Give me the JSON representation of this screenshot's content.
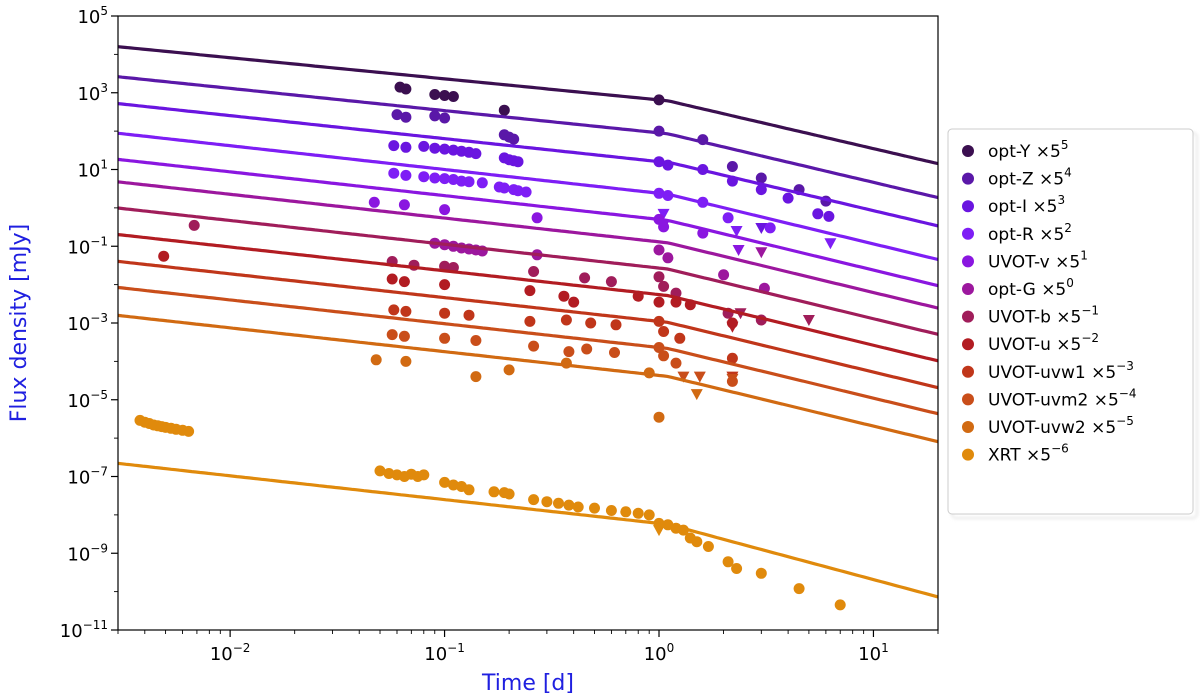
{
  "chart_data": {
    "type": "scatter",
    "title": "",
    "xlabel": "Time [d]",
    "ylabel": "Flux density [mJy]",
    "xscale": "log",
    "yscale": "log",
    "xlim": [
      0.003,
      20
    ],
    "ylim": [
      1e-11,
      100000.0
    ],
    "x_ticks": [
      {
        "value": 0.01,
        "base": "10",
        "exp": "−2"
      },
      {
        "value": 0.1,
        "base": "10",
        "exp": "−1"
      },
      {
        "value": 1,
        "base": "10",
        "exp": "0"
      },
      {
        "value": 10,
        "base": "10",
        "exp": "1"
      }
    ],
    "y_ticks": [
      {
        "value": 1e-11,
        "base": "10",
        "exp": "−11"
      },
      {
        "value": 1e-09,
        "base": "10",
        "exp": "−9"
      },
      {
        "value": 1e-07,
        "base": "10",
        "exp": "−7"
      },
      {
        "value": 1e-05,
        "base": "10",
        "exp": "−5"
      },
      {
        "value": 0.001,
        "base": "10",
        "exp": "−3"
      },
      {
        "value": 0.1,
        "base": "10",
        "exp": "−1"
      },
      {
        "value": 10,
        "base": "10",
        "exp": "1"
      },
      {
        "value": 1000.0,
        "base": "10",
        "exp": "3"
      },
      {
        "value": 100000.0,
        "base": "10",
        "exp": "5"
      }
    ],
    "legend_position": "outside-right",
    "series": [
      {
        "name": "opt-Y",
        "scale_base": "5",
        "scale_exp": "5",
        "color": "#3b0f50",
        "model": {
          "y_at_1": 650,
          "alpha1": 0.55,
          "t_break": 1.1,
          "alpha2": 1.3
        },
        "points": [
          [
            0.062,
            1400
          ],
          [
            0.066,
            1250
          ],
          [
            0.09,
            900
          ],
          [
            0.1,
            850
          ],
          [
            0.11,
            800
          ],
          [
            0.19,
            350
          ],
          [
            1.0,
            650
          ]
        ],
        "upper_limits": []
      },
      {
        "name": "opt-Z",
        "scale_base": "5",
        "scale_exp": "4",
        "color": "#5a18a8",
        "model": {
          "y_at_1": 90,
          "alpha1": 0.58,
          "t_break": 1.1,
          "alpha2": 1.32
        },
        "points": [
          [
            0.06,
            270
          ],
          [
            0.066,
            230
          ],
          [
            0.09,
            250
          ],
          [
            0.1,
            220
          ],
          [
            0.19,
            80
          ],
          [
            0.2,
            70
          ],
          [
            0.21,
            62
          ],
          [
            1.0,
            100
          ],
          [
            1.6,
            60
          ],
          [
            2.2,
            12
          ],
          [
            3.0,
            6
          ],
          [
            4.5,
            3
          ],
          [
            6.0,
            1.5
          ]
        ],
        "upper_limits": []
      },
      {
        "name": "opt-I",
        "scale_base": "5",
        "scale_exp": "3",
        "color": "#6a15e0",
        "model": {
          "y_at_1": 16,
          "alpha1": 0.6,
          "t_break": 1.15,
          "alpha2": 1.32
        },
        "points": [
          [
            0.058,
            42
          ],
          [
            0.066,
            38
          ],
          [
            0.08,
            40
          ],
          [
            0.09,
            36
          ],
          [
            0.1,
            34
          ],
          [
            0.11,
            32
          ],
          [
            0.12,
            30
          ],
          [
            0.13,
            28
          ],
          [
            0.14,
            26
          ],
          [
            0.19,
            20
          ],
          [
            0.2,
            18
          ],
          [
            0.21,
            17
          ],
          [
            0.22,
            16
          ],
          [
            1.0,
            16
          ],
          [
            1.1,
            13
          ],
          [
            1.6,
            10
          ],
          [
            2.2,
            5
          ],
          [
            3.0,
            3
          ],
          [
            4.0,
            1.8
          ],
          [
            5.5,
            0.7
          ],
          [
            6.2,
            0.6
          ]
        ],
        "upper_limits": [
          [
            3.0,
            0.3
          ]
        ]
      },
      {
        "name": "opt-R",
        "scale_base": "5",
        "scale_exp": "2",
        "color": "#7e1ef5",
        "model": {
          "y_at_1": 2.4,
          "alpha1": 0.62,
          "t_break": 1.1,
          "alpha2": 1.35
        },
        "points": [
          [
            0.058,
            8
          ],
          [
            0.066,
            7
          ],
          [
            0.08,
            6.5
          ],
          [
            0.09,
            6
          ],
          [
            0.1,
            5.8
          ],
          [
            0.11,
            5.5
          ],
          [
            0.12,
            5
          ],
          [
            0.13,
            4.8
          ],
          [
            0.15,
            4.5
          ],
          [
            0.18,
            3.5
          ],
          [
            0.19,
            3.3
          ],
          [
            0.21,
            3
          ],
          [
            0.22,
            2.8
          ],
          [
            0.24,
            2.6
          ],
          [
            1.0,
            2.4
          ],
          [
            1.1,
            2.1
          ],
          [
            1.6,
            1.4
          ],
          [
            2.1,
            0.55
          ],
          [
            3.3,
            0.3
          ]
        ],
        "upper_limits": [
          [
            1.05,
            0.7
          ],
          [
            2.3,
            0.25
          ],
          [
            6.3,
            0.12
          ]
        ]
      },
      {
        "name": "UVOT-v",
        "scale_base": "5",
        "scale_exp": "1",
        "color": "#8a16e0",
        "model": {
          "y_at_1": 0.5,
          "alpha1": 0.62,
          "t_break": 1.1,
          "alpha2": 1.35
        },
        "points": [
          [
            0.047,
            1.4
          ],
          [
            0.065,
            1.2
          ],
          [
            0.1,
            0.9
          ],
          [
            0.27,
            0.55
          ],
          [
            1.0,
            0.5
          ],
          [
            1.05,
            0.32
          ],
          [
            1.6,
            0.22
          ]
        ],
        "upper_limits": [
          [
            1.05,
            0.35
          ],
          [
            2.35,
            0.08
          ]
        ]
      },
      {
        "name": "opt-G",
        "scale_base": "5",
        "scale_exp": "0",
        "color": "#9c179e",
        "model": {
          "y_at_1": 0.13,
          "alpha1": 0.62,
          "t_break": 1.1,
          "alpha2": 1.35
        },
        "points": [
          [
            0.09,
            0.12
          ],
          [
            0.1,
            0.11
          ],
          [
            0.11,
            0.1
          ],
          [
            0.12,
            0.09
          ],
          [
            0.13,
            0.085
          ],
          [
            0.14,
            0.08
          ],
          [
            0.15,
            0.075
          ],
          [
            0.27,
            0.06
          ],
          [
            1.0,
            0.08
          ],
          [
            1.1,
            0.05
          ],
          [
            2.0,
            0.018
          ],
          [
            3.1,
            0.008
          ]
        ],
        "upper_limits": [
          [
            3.0,
            0.07
          ]
        ]
      },
      {
        "name": "UVOT-b",
        "scale_base": "5",
        "scale_exp": "−1",
        "color": "#a01d5a",
        "model": {
          "y_at_1": 0.027,
          "alpha1": 0.62,
          "t_break": 1.1,
          "alpha2": 1.35
        },
        "points": [
          [
            0.0068,
            0.35
          ],
          [
            0.057,
            0.04
          ],
          [
            0.072,
            0.032
          ],
          [
            0.1,
            0.03
          ],
          [
            0.11,
            0.028
          ],
          [
            0.26,
            0.022
          ],
          [
            0.45,
            0.015
          ],
          [
            0.6,
            0.012
          ],
          [
            1.0,
            0.016
          ],
          [
            1.05,
            0.009
          ],
          [
            1.2,
            0.006
          ],
          [
            2.1,
            0.0018
          ],
          [
            3.0,
            0.0012
          ]
        ],
        "upper_limits": [
          [
            2.4,
            0.0018
          ],
          [
            5.0,
            0.0012
          ]
        ]
      },
      {
        "name": "UVOT-u",
        "scale_base": "5",
        "scale_exp": "−2",
        "color": "#b21c22",
        "model": {
          "y_at_1": 0.0055,
          "alpha1": 0.62,
          "t_break": 1.1,
          "alpha2": 1.35
        },
        "points": [
          [
            0.0049,
            0.055
          ],
          [
            0.057,
            0.014
          ],
          [
            0.065,
            0.012
          ],
          [
            0.1,
            0.01
          ],
          [
            0.25,
            0.007
          ],
          [
            0.36,
            0.005
          ],
          [
            0.4,
            0.0035
          ],
          [
            0.8,
            0.005
          ],
          [
            1.0,
            0.0035
          ],
          [
            1.2,
            0.0035
          ],
          [
            1.4,
            0.003
          ],
          [
            2.2,
            0.001
          ]
        ],
        "upper_limits": [
          [
            2.2,
            0.0008
          ]
        ]
      },
      {
        "name": "UVOT-uvw1",
        "scale_base": "5",
        "scale_exp": "−3",
        "color": "#c0361a",
        "model": {
          "y_at_1": 0.0011,
          "alpha1": 0.62,
          "t_break": 1.1,
          "alpha2": 1.35
        },
        "points": [
          [
            0.058,
            0.0022
          ],
          [
            0.066,
            0.002
          ],
          [
            0.1,
            0.0018
          ],
          [
            0.13,
            0.0016
          ],
          [
            0.25,
            0.0011
          ],
          [
            0.37,
            0.0012
          ],
          [
            0.48,
            0.001
          ],
          [
            0.63,
            0.0009
          ],
          [
            1.0,
            0.0011
          ],
          [
            1.05,
            0.0006
          ],
          [
            1.25,
            0.0004
          ],
          [
            2.2,
            0.00012
          ]
        ],
        "upper_limits": [
          [
            2.2,
            4e-05
          ]
        ]
      },
      {
        "name": "UVOT-uvm2",
        "scale_base": "5",
        "scale_exp": "−4",
        "color": "#c94e1a",
        "model": {
          "y_at_1": 0.00023,
          "alpha1": 0.62,
          "t_break": 1.1,
          "alpha2": 1.35
        },
        "points": [
          [
            0.057,
            0.0005
          ],
          [
            0.065,
            0.00045
          ],
          [
            0.1,
            0.0004
          ],
          [
            0.14,
            0.00035
          ],
          [
            0.26,
            0.00025
          ],
          [
            0.38,
            0.00018
          ],
          [
            0.46,
            0.00021
          ],
          [
            0.62,
            0.00017
          ],
          [
            1.0,
            0.00023
          ],
          [
            1.05,
            0.00014
          ],
          [
            1.2,
            9e-05
          ],
          [
            2.2,
            3e-05
          ]
        ],
        "upper_limits": [
          [
            1.3,
            4e-05
          ],
          [
            1.55,
            4e-05
          ],
          [
            2.2,
            3.5e-05
          ]
        ]
      },
      {
        "name": "UVOT-uvw2",
        "scale_base": "5",
        "scale_exp": "−5",
        "color": "#d16a12",
        "model": {
          "y_at_1": 4.3e-05,
          "alpha1": 0.62,
          "t_break": 1.1,
          "alpha2": 1.35
        },
        "points": [
          [
            0.048,
            0.00011
          ],
          [
            0.066,
            0.0001
          ],
          [
            0.14,
            4e-05
          ],
          [
            0.2,
            6e-05
          ],
          [
            0.37,
            9e-05
          ],
          [
            0.9,
            5e-05
          ],
          [
            1.0,
            3.5e-06
          ]
        ],
        "upper_limits": [
          [
            1.5,
            1.4e-05
          ]
        ]
      },
      {
        "name": "XRT",
        "scale_base": "5",
        "scale_exp": "−6",
        "color": "#e08a0c",
        "model": {
          "y_at_1": 6e-09,
          "alpha1": 0.62,
          "t_break": 1.1,
          "alpha2": 1.5
        },
        "points": [
          [
            0.0038,
            2.9e-06
          ],
          [
            0.004,
            2.6e-06
          ],
          [
            0.0042,
            2.4e-06
          ],
          [
            0.0044,
            2.2e-06
          ],
          [
            0.0046,
            2.1e-06
          ],
          [
            0.0048,
            2e-06
          ],
          [
            0.005,
            1.9e-06
          ],
          [
            0.0053,
            1.8e-06
          ],
          [
            0.0056,
            1.7e-06
          ],
          [
            0.006,
            1.6e-06
          ],
          [
            0.0064,
            1.5e-06
          ],
          [
            0.05,
            1.4e-07
          ],
          [
            0.055,
            1.2e-07
          ],
          [
            0.06,
            1.1e-07
          ],
          [
            0.065,
            1e-07
          ],
          [
            0.07,
            1.15e-07
          ],
          [
            0.075,
            1e-07
          ],
          [
            0.08,
            1.1e-07
          ],
          [
            0.1,
            7e-08
          ],
          [
            0.11,
            6e-08
          ],
          [
            0.12,
            5.5e-08
          ],
          [
            0.13,
            4.5e-08
          ],
          [
            0.17,
            4e-08
          ],
          [
            0.19,
            3.8e-08
          ],
          [
            0.2,
            3.5e-08
          ],
          [
            0.26,
            2.5e-08
          ],
          [
            0.3,
            2.2e-08
          ],
          [
            0.34,
            2e-08
          ],
          [
            0.38,
            1.8e-08
          ],
          [
            0.42,
            1.6e-08
          ],
          [
            0.5,
            1.5e-08
          ],
          [
            0.6,
            1.3e-08
          ],
          [
            0.7,
            1.2e-08
          ],
          [
            0.8,
            1.1e-08
          ],
          [
            0.9,
            1e-08
          ],
          [
            1.0,
            6e-09
          ],
          [
            1.1,
            5.5e-09
          ],
          [
            1.2,
            4.5e-09
          ],
          [
            1.3,
            4e-09
          ],
          [
            1.4,
            2.5e-09
          ],
          [
            1.5,
            2e-09
          ],
          [
            1.7,
            1.5e-09
          ],
          [
            2.1,
            6e-10
          ],
          [
            2.3,
            4e-10
          ],
          [
            3.0,
            3e-10
          ],
          [
            4.5,
            1.2e-10
          ],
          [
            7.0,
            4.5e-11
          ]
        ],
        "upper_limits": [
          [
            1.0,
            4e-09
          ]
        ]
      }
    ]
  }
}
